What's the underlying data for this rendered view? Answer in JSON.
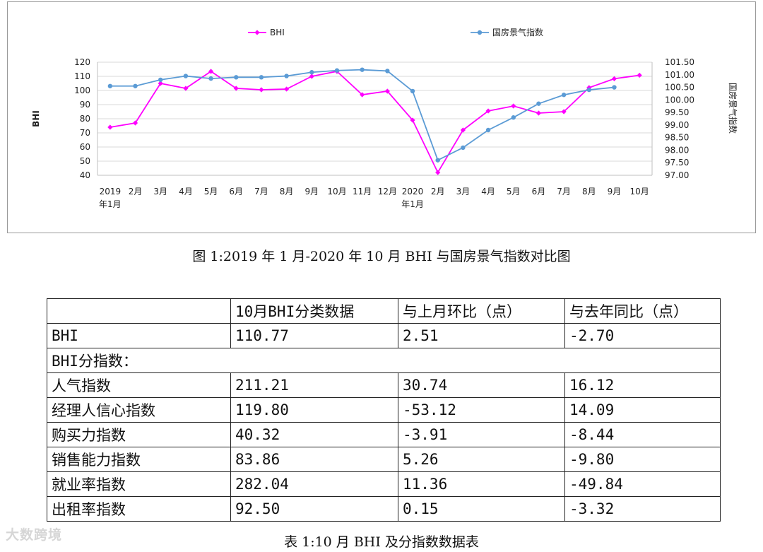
{
  "chart_data": {
    "type": "line",
    "categories": [
      "2019年1月",
      "2月",
      "3月",
      "4月",
      "5月",
      "6月",
      "7月",
      "8月",
      "9月",
      "10月",
      "11月",
      "12月",
      "2020年1月",
      "2月",
      "3月",
      "4月",
      "5月",
      "6月",
      "7月",
      "8月",
      "9月",
      "10月"
    ],
    "category_labels": [
      [
        "2019",
        "年1月"
      ],
      [
        "2月"
      ],
      [
        "3月"
      ],
      [
        "4月"
      ],
      [
        "5月"
      ],
      [
        "6月"
      ],
      [
        "7月"
      ],
      [
        "8月"
      ],
      [
        "9月"
      ],
      [
        "10月"
      ],
      [
        "11月"
      ],
      [
        "12月"
      ],
      [
        "2020",
        "年1月"
      ],
      [
        "2月"
      ],
      [
        "3月"
      ],
      [
        "4月"
      ],
      [
        "5月"
      ],
      [
        "6月"
      ],
      [
        "7月"
      ],
      [
        "8月"
      ],
      [
        "9月"
      ],
      [
        "10月"
      ]
    ],
    "ylabel": "BHI",
    "y2label": "国房景气指数",
    "ylim": [
      40,
      120
    ],
    "yticks": [
      "40",
      "50",
      "60",
      "70",
      "80",
      "90",
      "100",
      "110",
      "120"
    ],
    "y2lim": [
      97.0,
      101.5
    ],
    "y2ticks": [
      "97.00",
      "97.50",
      "98.00",
      "98.50",
      "99.00",
      "99.50",
      "100.00",
      "100.50",
      "101.00",
      "101.50"
    ],
    "grid": true,
    "legend_position": "top",
    "series": [
      {
        "name": "BHI",
        "axis": "left",
        "color": "#ff00ff",
        "marker": "diamond",
        "values": [
          74.0,
          77.0,
          105.0,
          101.5,
          113.5,
          101.5,
          100.5,
          101.0,
          110.0,
          113.5,
          97.0,
          99.5,
          79.0,
          42.0,
          72.0,
          85.5,
          89.0,
          84.0,
          85.0,
          102.0,
          108.3,
          110.77
        ]
      },
      {
        "name": "国房景气指数",
        "axis": "right",
        "color": "#5b9bd5",
        "marker": "circle",
        "values": [
          100.55,
          100.55,
          100.8,
          100.95,
          100.85,
          100.9,
          100.9,
          100.95,
          101.1,
          101.17,
          101.2,
          101.15,
          100.35,
          97.6,
          98.1,
          98.8,
          99.3,
          99.85,
          100.2,
          100.4,
          100.5,
          null
        ]
      }
    ]
  },
  "figure_caption": "图 1:2019 年 1 月-2020 年 10 月 BHI 与国房景气指数对比图",
  "table": {
    "headers": [
      "",
      "10月BHI分类数据",
      "与上月环比（点）",
      "与去年同比（点）"
    ],
    "rows": [
      {
        "label": "BHI",
        "v1": "110.77",
        "v2": "2.51",
        "v3": "-2.70"
      },
      {
        "label": "BHI分指数：",
        "section": true
      },
      {
        "label": "人气指数",
        "v1": "211.21",
        "v2": "30.74",
        "v3": "16.12"
      },
      {
        "label": "经理人信心指数",
        "v1": "119.80",
        "v2": "-53.12",
        "v3": "14.09"
      },
      {
        "label": "购买力指数",
        "v1": "40.32",
        "v2": "-3.91",
        "v3": "-8.44"
      },
      {
        "label": "销售能力指数",
        "v1": "83.86",
        "v2": "5.26",
        "v3": "-9.80"
      },
      {
        "label": "就业率指数",
        "v1": "282.04",
        "v2": "11.36",
        "v3": "-49.84"
      },
      {
        "label": "出租率指数",
        "v1": "92.50",
        "v2": "0.15",
        "v3": "-3.32"
      }
    ]
  },
  "table_caption": "表 1:10 月 BHI 及分指数数据表",
  "watermark": "大数跨境"
}
